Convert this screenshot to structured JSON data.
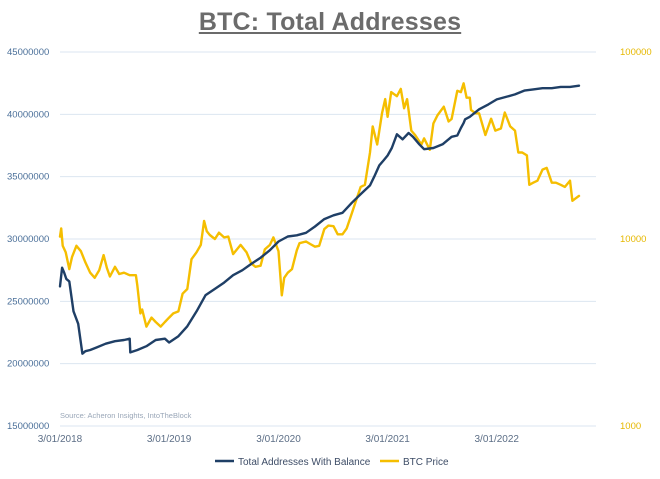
{
  "chart_data": {
    "type": "line",
    "title": "BTC: Total Addresses",
    "source": "Source: Acheron Insights, IntoTheBlock",
    "x_tick_labels": [
      "3/01/2018",
      "3/01/2019",
      "3/01/2020",
      "3/01/2021",
      "3/01/2022"
    ],
    "left_axis": {
      "ticks": [
        15000000,
        20000000,
        25000000,
        30000000,
        35000000,
        40000000,
        45000000
      ],
      "tick_labels": [
        "15000000",
        "20000000",
        "25000000",
        "30000000",
        "35000000",
        "40000000",
        "45000000"
      ],
      "range": [
        15000000,
        45000000
      ]
    },
    "right_axis": {
      "scale": "log",
      "ticks": [
        1000,
        10000,
        100000
      ],
      "tick_labels": [
        "1000",
        "10000",
        "100000"
      ],
      "range": [
        1000,
        100000
      ]
    },
    "grid": true,
    "legend_position": "bottom",
    "colors": {
      "addresses": "#1f3f66",
      "price": "#f5be00",
      "grid": "#dbe6f1"
    },
    "series": [
      {
        "name": "Total Addresses With Balance",
        "axis": "left",
        "x": [
          "2018-03-01",
          "2018-03-08",
          "2018-03-15",
          "2018-03-22",
          "2018-04-01",
          "2018-04-15",
          "2018-05-01",
          "2018-05-15",
          "2018-05-25",
          "2018-06-10",
          "2018-07-01",
          "2018-08-01",
          "2018-09-01",
          "2018-10-01",
          "2018-10-20",
          "2018-10-22",
          "2018-11-15",
          "2018-12-15",
          "2019-01-15",
          "2019-02-15",
          "2019-03-01",
          "2019-04-01",
          "2019-05-01",
          "2019-06-01",
          "2019-07-01",
          "2019-08-01",
          "2019-09-01",
          "2019-10-01",
          "2019-11-01",
          "2019-12-01",
          "2020-01-01",
          "2020-02-01",
          "2020-03-01",
          "2020-04-01",
          "2020-05-01",
          "2020-06-01",
          "2020-07-01",
          "2020-08-01",
          "2020-09-01",
          "2020-10-01",
          "2020-11-01",
          "2020-12-01",
          "2021-01-01",
          "2021-01-15",
          "2021-02-01",
          "2021-02-15",
          "2021-03-01",
          "2021-03-15",
          "2021-04-01",
          "2021-04-20",
          "2021-05-10",
          "2021-05-25",
          "2021-06-15",
          "2021-07-01",
          "2021-08-01",
          "2021-09-01",
          "2021-10-01",
          "2021-10-20",
          "2021-11-01",
          "2021-11-10",
          "2021-11-15",
          "2021-12-01",
          "2022-01-01",
          "2022-02-01",
          "2022-03-01",
          "2022-04-01",
          "2022-05-01",
          "2022-06-01",
          "2022-07-01",
          "2022-08-01",
          "2022-09-01",
          "2022-10-01",
          "2022-11-01",
          "2022-12-01"
        ],
        "values": [
          26200000,
          27700000,
          27300000,
          26800000,
          26600000,
          24200000,
          23200000,
          20800000,
          21000000,
          21100000,
          21300000,
          21600000,
          21800000,
          21900000,
          22000000,
          20900000,
          21100000,
          21400000,
          21900000,
          22000000,
          21700000,
          22200000,
          23000000,
          24200000,
          25500000,
          26000000,
          26500000,
          27100000,
          27500000,
          28000000,
          28500000,
          29100000,
          29800000,
          30200000,
          30300000,
          30500000,
          31000000,
          31600000,
          31900000,
          32100000,
          32900000,
          33600000,
          34300000,
          35000000,
          35900000,
          36300000,
          36700000,
          37300000,
          38400000,
          38000000,
          38500000,
          38200000,
          37600000,
          37200000,
          37300000,
          37600000,
          38200000,
          38300000,
          38900000,
          39300000,
          39600000,
          39800000,
          40400000,
          40800000,
          41200000,
          41400000,
          41600000,
          41900000,
          42000000,
          42100000,
          42100000,
          42200000,
          42200000,
          42300000
        ]
      },
      {
        "name": "BTC Price",
        "axis": "right",
        "x": [
          "2018-03-01",
          "2018-03-05",
          "2018-03-10",
          "2018-03-20",
          "2018-04-01",
          "2018-04-10",
          "2018-04-25",
          "2018-05-10",
          "2018-05-25",
          "2018-06-10",
          "2018-06-25",
          "2018-07-10",
          "2018-07-25",
          "2018-08-05",
          "2018-08-15",
          "2018-09-01",
          "2018-09-15",
          "2018-10-01",
          "2018-10-20",
          "2018-11-10",
          "2018-11-15",
          "2018-11-25",
          "2018-12-01",
          "2018-12-15",
          "2019-01-01",
          "2019-01-15",
          "2019-02-01",
          "2019-02-15",
          "2019-03-01",
          "2019-03-15",
          "2019-04-01",
          "2019-04-15",
          "2019-05-01",
          "2019-05-15",
          "2019-06-01",
          "2019-06-15",
          "2019-06-26",
          "2019-07-05",
          "2019-07-15",
          "2019-08-01",
          "2019-08-15",
          "2019-09-01",
          "2019-09-15",
          "2019-10-01",
          "2019-10-26",
          "2019-11-15",
          "2019-12-01",
          "2019-12-15",
          "2020-01-01",
          "2020-01-15",
          "2020-02-01",
          "2020-02-13",
          "2020-03-01",
          "2020-03-12",
          "2020-03-20",
          "2020-04-01",
          "2020-04-15",
          "2020-05-01",
          "2020-05-10",
          "2020-06-01",
          "2020-06-15",
          "2020-07-01",
          "2020-07-15",
          "2020-08-01",
          "2020-08-15",
          "2020-09-01",
          "2020-09-15",
          "2020-10-01",
          "2020-10-15",
          "2020-11-01",
          "2020-11-15",
          "2020-12-01",
          "2020-12-15",
          "2021-01-01",
          "2021-01-10",
          "2021-01-25",
          "2021-02-10",
          "2021-02-21",
          "2021-03-01",
          "2021-03-13",
          "2021-04-01",
          "2021-04-14",
          "2021-04-25",
          "2021-05-05",
          "2021-05-19",
          "2021-06-01",
          "2021-06-22",
          "2021-07-01",
          "2021-07-20",
          "2021-08-01",
          "2021-08-15",
          "2021-09-05",
          "2021-09-21",
          "2021-10-01",
          "2021-10-20",
          "2021-11-01",
          "2021-11-10",
          "2021-11-20",
          "2021-12-01",
          "2021-12-05",
          "2021-12-20",
          "2022-01-01",
          "2022-01-22",
          "2022-02-10",
          "2022-02-24",
          "2022-03-15",
          "2022-03-28",
          "2022-04-15",
          "2022-05-01",
          "2022-05-12",
          "2022-05-25",
          "2022-06-10",
          "2022-06-18",
          "2022-07-01",
          "2022-07-15",
          "2022-08-01",
          "2022-08-15",
          "2022-09-01",
          "2022-09-15",
          "2022-10-01",
          "2022-10-15",
          "2022-11-01",
          "2022-11-09",
          "2022-11-20",
          "2022-12-01"
        ],
        "values": [
          10300,
          11400,
          9200,
          8500,
          6900,
          8000,
          9200,
          8600,
          7500,
          6600,
          6200,
          6800,
          8200,
          7000,
          6300,
          7100,
          6500,
          6600,
          6400,
          6400,
          5600,
          4000,
          4200,
          3400,
          3800,
          3600,
          3400,
          3600,
          3800,
          4000,
          4100,
          5100,
          5400,
          7800,
          8500,
          9300,
          12500,
          11000,
          10500,
          10000,
          10800,
          10200,
          10300,
          8300,
          9300,
          8500,
          7400,
          7100,
          7200,
          8800,
          9300,
          10200,
          8600,
          5000,
          6200,
          6600,
          6900,
          8700,
          9500,
          9700,
          9400,
          9100,
          9200,
          11300,
          11800,
          11700,
          10600,
          10600,
          11400,
          13700,
          16000,
          19000,
          19500,
          29000,
          40000,
          32000,
          47000,
          56000,
          45000,
          61000,
          58000,
          63500,
          50000,
          56000,
          38000,
          36000,
          32000,
          34500,
          30000,
          41500,
          46000,
          51000,
          42500,
          43800,
          62000,
          61000,
          68000,
          57000,
          57000,
          49000,
          47000,
          47000,
          36000,
          44000,
          38000,
          39000,
          47500,
          40000,
          38000,
          29000,
          29000,
          28000,
          19500,
          20000,
          20500,
          23500,
          24000,
          20000,
          20000,
          19500,
          19000,
          20500,
          16000,
          16500,
          17000
        ]
      }
    ]
  },
  "legend": {
    "items": [
      {
        "label": "Total Addresses With Balance",
        "color": "#1f3f66"
      },
      {
        "label": "BTC Price",
        "color": "#f5be00"
      }
    ]
  }
}
